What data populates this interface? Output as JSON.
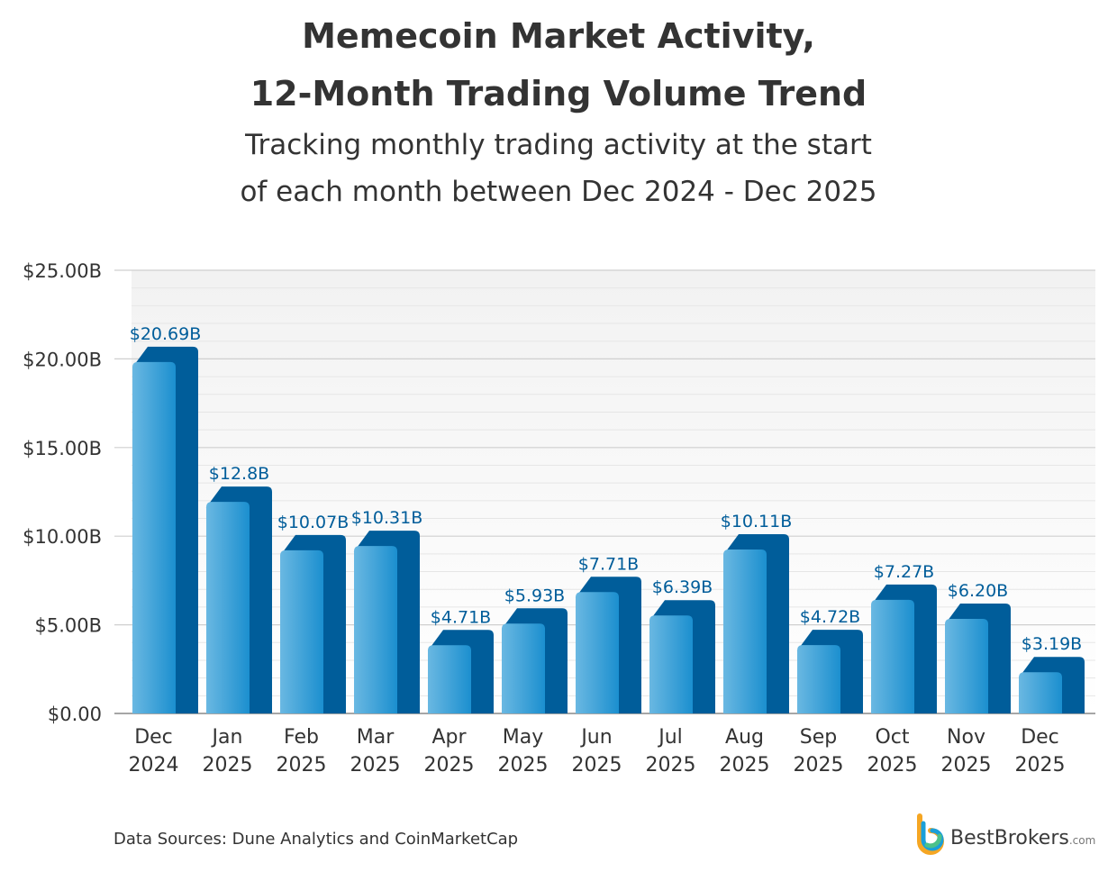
{
  "chart_data": {
    "type": "bar",
    "title_lines": [
      "Memecoin Market Activity,",
      "12-Month Trading Volume Trend"
    ],
    "subtitle_lines": [
      "Tracking monthly trading activity at the start",
      "of each month between Dec 2024 - Dec 2025"
    ],
    "categories": [
      [
        "Dec",
        "2024"
      ],
      [
        "Jan",
        "2025"
      ],
      [
        "Feb",
        "2025"
      ],
      [
        "Mar",
        "2025"
      ],
      [
        "Apr",
        "2025"
      ],
      [
        "May",
        "2025"
      ],
      [
        "Jun",
        "2025"
      ],
      [
        "Jul",
        "2025"
      ],
      [
        "Aug",
        "2025"
      ],
      [
        "Sep",
        "2025"
      ],
      [
        "Oct",
        "2025"
      ],
      [
        "Nov",
        "2025"
      ],
      [
        "Dec",
        "2025"
      ]
    ],
    "values": [
      20.69,
      12.8,
      10.07,
      10.31,
      4.71,
      5.93,
      7.71,
      6.39,
      10.11,
      4.72,
      7.27,
      6.2,
      3.19
    ],
    "data_labels": [
      "$20.69B",
      "$12.8B",
      "$10.07B",
      "$10.31B",
      "$4.71B",
      "$5.93B",
      "$7.71B",
      "$6.39B",
      "$10.11B",
      "$4.72B",
      "$7.27B",
      "$6.20B",
      "$3.19B"
    ],
    "ylim": [
      0,
      25
    ],
    "yticks": [
      0,
      5,
      10,
      15,
      20,
      25
    ],
    "ytick_labels": [
      "$0.00",
      "$5.00B",
      "$10.00B",
      "$15.00B",
      "$20.00B",
      "$25.00B"
    ],
    "xlabel": "",
    "ylabel": "",
    "grid": true,
    "colors": {
      "bar_front_light": "#6ab8e2",
      "bar_front_dark": "#1b8fcf",
      "bar_back": "#005d9a",
      "label": "#005d9a"
    }
  },
  "footer": {
    "source": "Data Sources: Dune Analytics and CoinMarketCap"
  },
  "logo": {
    "name": "BestBrokers",
    "suffix": ".com"
  }
}
